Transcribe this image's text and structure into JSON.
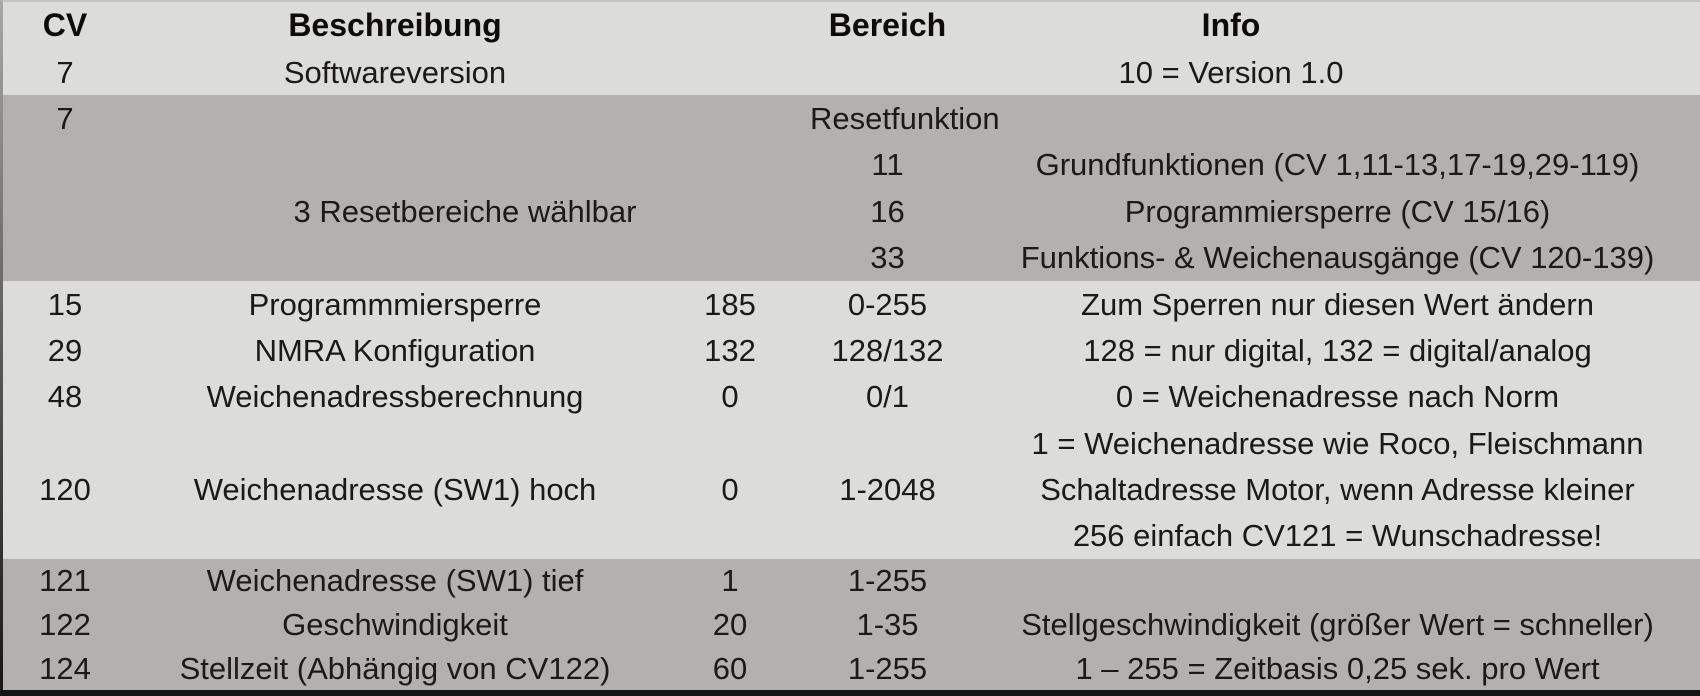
{
  "header": {
    "cv": "CV",
    "beschreibung": "Beschreibung",
    "bereich": "Bereich",
    "info": "Info"
  },
  "sections": {
    "softwareversion": {
      "cv": "7",
      "beschreibung": "Softwareversion",
      "info": "10 = Version 1.0"
    },
    "reset": {
      "cv": "7",
      "beschreibung": "3 Resetbereiche wählbar",
      "title": "Resetfunktion",
      "options": [
        {
          "value": "11",
          "info": "Grundfunktionen (CV 1,11-13,17-19,29-119)"
        },
        {
          "value": "16",
          "info": "Programmiersperre (CV 15/16)"
        },
        {
          "value": "33",
          "info": "Funktions- & Weichenausgänge (CV 120-139)"
        }
      ]
    },
    "main_rows": [
      {
        "cv": "15",
        "beschreibung": "Programmmiersperre",
        "wert": "185",
        "bereich": "0-255",
        "info": [
          "Zum Sperren nur diesen Wert ändern"
        ]
      },
      {
        "cv": "29",
        "beschreibung": "NMRA Konfiguration",
        "wert": "132",
        "bereich": "128/132",
        "info": [
          "128 = nur digital, 132 = digital/analog"
        ]
      },
      {
        "cv": "48",
        "beschreibung": "Weichenadressberechnung",
        "wert": "0",
        "bereich": "0/1",
        "info": [
          "0 = Weichenadresse nach Norm",
          "1 = Weichenadresse wie Roco, Fleischmann"
        ]
      },
      {
        "cv": "120",
        "beschreibung": "Weichenadresse (SW1) hoch",
        "wert": "0",
        "bereich": "1-2048",
        "info": [
          "Schaltadresse Motor, wenn Adresse kleiner",
          "256 einfach CV121 = Wunschadresse!"
        ]
      }
    ],
    "bottom_rows": [
      {
        "cv": "121",
        "beschreibung": "Weichenadresse (SW1) tief",
        "wert": "1",
        "bereich": "1-255",
        "info": ""
      },
      {
        "cv": "122",
        "beschreibung": "Geschwindigkeit",
        "wert": "20",
        "bereich": "1-35",
        "info": "Stellgeschwindigkeit (größer Wert = schneller)"
      },
      {
        "cv": "124",
        "beschreibung": "Stellzeit (Abhängig von CV122)",
        "wert": "60",
        "bereich": "1-255",
        "info": "1 – 255 = Zeitbasis 0,25 sek. pro Wert"
      }
    ]
  },
  "colors": {
    "band_light": "#dcdcda",
    "band_dark": "#b2b1af",
    "text": "#1b1a18",
    "bottom_strip": "#161616"
  }
}
